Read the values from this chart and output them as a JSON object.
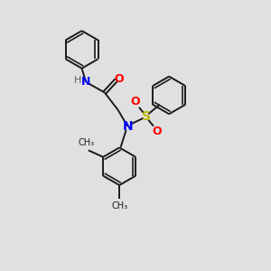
{
  "bg_color": "#e0e0e0",
  "bond_color": "#1a1a1a",
  "N_color": "#0000ff",
  "O_color": "#ff0000",
  "S_color": "#bbbb00",
  "H_color": "#606060",
  "lw": 1.4,
  "lw_inner": 1.0,
  "figsize": [
    3.0,
    3.0
  ],
  "dpi": 100,
  "xlim": [
    0,
    10
  ],
  "ylim": [
    0,
    10
  ]
}
